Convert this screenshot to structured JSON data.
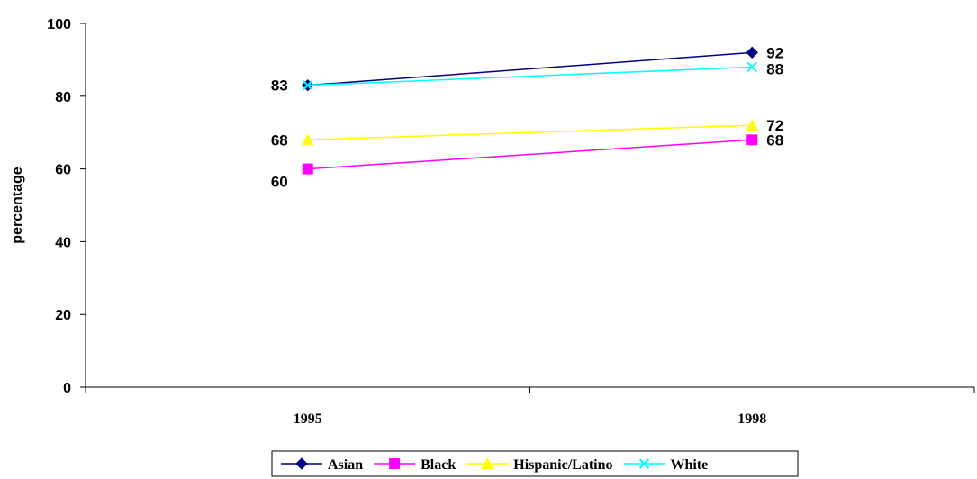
{
  "chart_data": {
    "type": "line",
    "title": "",
    "xlabel": "",
    "ylabel": "percentage",
    "x": [
      "1995",
      "1998"
    ],
    "ylim": [
      0,
      100
    ],
    "yticks": [
      0,
      20,
      40,
      60,
      80,
      100
    ],
    "grid": false,
    "legend": "bottom",
    "series": [
      {
        "name": "Asian",
        "values": [
          83,
          92
        ],
        "color": "#000080",
        "marker": "diamond",
        "labels": [
          "83",
          "92"
        ]
      },
      {
        "name": "Black",
        "values": [
          60,
          68
        ],
        "color": "#ff00ff",
        "marker": "square",
        "labels": [
          "60",
          "68"
        ]
      },
      {
        "name": "Hispanic/Latino",
        "values": [
          68,
          72
        ],
        "color": "#ffff00",
        "marker": "triangle",
        "labels": [
          "68",
          "72"
        ]
      },
      {
        "name": "White",
        "values": [
          83,
          88
        ],
        "color": "#00ffff",
        "marker": "x",
        "labels": [
          "",
          "88"
        ]
      }
    ]
  }
}
